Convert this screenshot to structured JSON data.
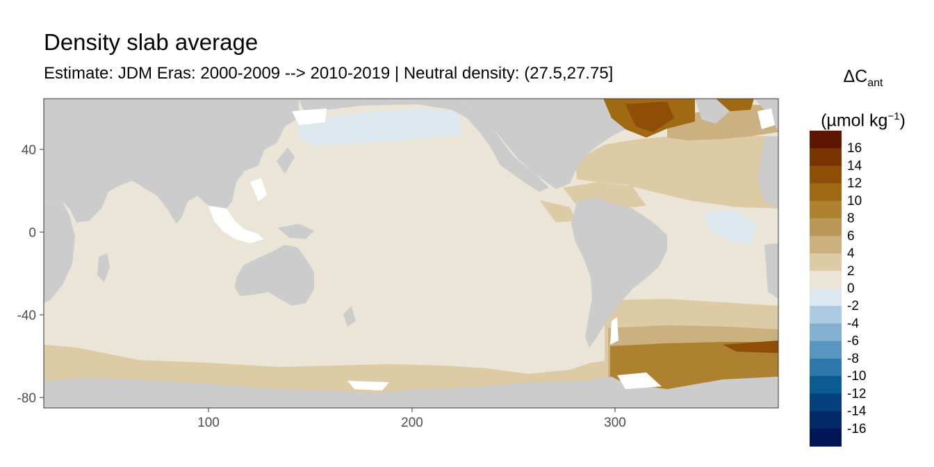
{
  "title": "Density slab average",
  "subtitle": "Estimate: JDM Eras: 2000-2009 --> 2010-2019 | Neutral density: (27.5,27.75]",
  "legend": {
    "symbol": "ΔC",
    "subscript": "ant",
    "unit_prefix": "(µmol kg",
    "unit_exponent": "−1",
    "unit_suffix": ")",
    "labels": [
      "16",
      "14",
      "12",
      "10",
      "8",
      "6",
      "4",
      "2",
      "0",
      "-2",
      "-4",
      "-6",
      "-8",
      "-10",
      "-12",
      "-14",
      "-16"
    ],
    "colors": [
      "#5c1500",
      "#7a3403",
      "#8f4e07",
      "#9f6a12",
      "#ad8130",
      "#bb9757",
      "#cbb080",
      "#ddcba6",
      "#ebe5d8",
      "#dce7ee",
      "#adcbe0",
      "#84b1d2",
      "#5895c0",
      "#2e77aa",
      "#0b5a93",
      "#063f7d",
      "#042a69",
      "#021657"
    ]
  },
  "map": {
    "x_ticks": [
      "100",
      "200",
      "300"
    ],
    "y_ticks": [
      "40",
      "0",
      "-40",
      "-80"
    ],
    "land_color": "#cccccc",
    "missing_color": "#ffffff",
    "background_color": "#ebe5d8"
  }
}
